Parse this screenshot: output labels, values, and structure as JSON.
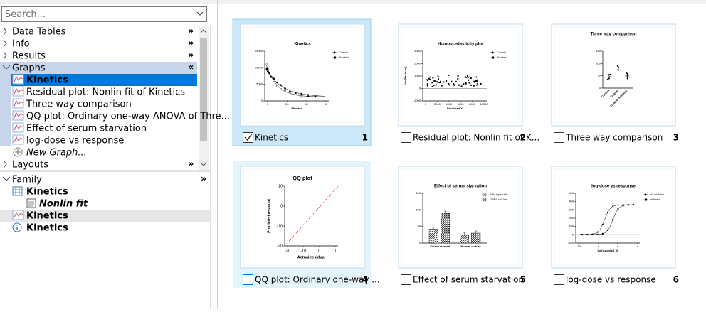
{
  "search": {
    "placeholder": "Search..."
  },
  "navigator": {
    "items": [
      {
        "label": "Data Tables",
        "toggle": "»"
      },
      {
        "label": "Info",
        "toggle": "»"
      },
      {
        "label": "Results",
        "toggle": "»"
      },
      {
        "label": "Graphs",
        "toggle": "«",
        "children": [
          "Kinetics",
          "Residual plot: Nonlin fit of Kinetics",
          "Three way comparison",
          "QQ plot: Ordinary one-way ANOVA of Thre...",
          "Effect of serum starvation",
          "log-dose vs response"
        ],
        "new_item": "New Graph..."
      },
      {
        "label": "Layouts",
        "toggle": "»"
      }
    ]
  },
  "family": {
    "label": "Family",
    "toggle": "»",
    "items": [
      {
        "label": "Kinetics",
        "icon": "table"
      },
      {
        "label": "Nonlin fit",
        "icon": "results"
      },
      {
        "label": "Kinetics",
        "icon": "graph"
      },
      {
        "label": "Kinetics",
        "icon": "info"
      }
    ]
  },
  "gallery": {
    "cards": [
      {
        "caption": "Kinetics",
        "number": 1,
        "checked": true,
        "thumbnail": {
          "type": "decay",
          "title": "Kinetics",
          "legend": [
            "Control",
            "Treated"
          ],
          "yticks": [
            "15000",
            "10000",
            "5000",
            "0"
          ],
          "xticks": [
            "0",
            "20",
            "40",
            "60"
          ],
          "xlabel": "Minutes"
        }
      },
      {
        "caption": "Residual plot: Nonlin fit of K...",
        "number": 2,
        "checked": false,
        "thumbnail": {
          "type": "scatter",
          "title": "Homoscedasticity plot",
          "legend": [
            "Control",
            "Treated"
          ],
          "yticks": [
            "3000",
            "2000",
            "1000",
            "0",
            "-1000"
          ],
          "xticks": [
            "0",
            "2000",
            "4000",
            "6000",
            "8000",
            "10000"
          ],
          "xlabel": "Predicted Y",
          "ylabel": "Abs(Residual)"
        }
      },
      {
        "caption": "Three way comparison",
        "number": 3,
        "checked": false,
        "thumbnail": {
          "type": "dot",
          "title": "Three way comparison",
          "yticks": [
            "150",
            "100",
            "50",
            "0"
          ],
          "categories": [
            "Control",
            "Treated",
            "Treated+Inhibitor"
          ]
        }
      },
      {
        "caption": "QQ plot: Ordinary one-way ...",
        "number": 4,
        "checked": false,
        "thumbnail": {
          "type": "qq",
          "title": "QQ plot",
          "yticks": [
            "10",
            "0",
            "-10",
            "-20"
          ],
          "xticks": [
            "-20",
            "-10",
            "0",
            "10"
          ],
          "xlabel": "Actual residual",
          "ylabel": "Predicted residual"
        }
      },
      {
        "caption": "Effect of serum starvation",
        "number": 5,
        "checked": false,
        "thumbnail": {
          "type": "bar",
          "title": "Effect of serum starvation",
          "legend": [
            "Wild-type cells",
            "GPP5 cell line"
          ],
          "yticks": [
            "150",
            "100",
            "50",
            "0"
          ],
          "categories": [
            "Serum starved",
            "Normal culture"
          ]
        }
      },
      {
        "caption": "log-dose vs response",
        "number": 6,
        "checked": false,
        "thumbnail": {
          "type": "sigmoid",
          "title": "log-dose vs response",
          "legend": [
            "No inhibitor",
            "Inhibitor"
          ],
          "yticks": [
            "500",
            "400",
            "300",
            "200",
            "100",
            "0",
            "-100"
          ],
          "xticks": [
            "-10",
            "-8",
            "-6",
            "-4"
          ],
          "xlabel": "log[Agonist], M"
        }
      }
    ]
  }
}
